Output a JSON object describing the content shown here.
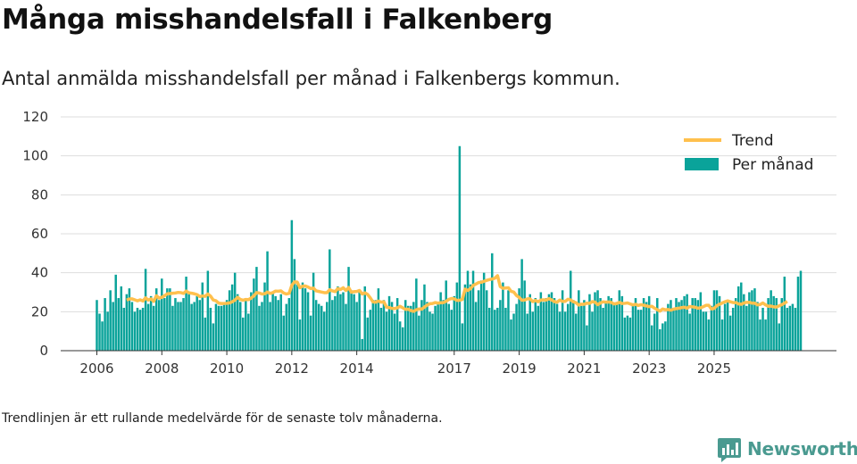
{
  "header": {
    "title": "Många misshandelsfall i Falkenberg",
    "subtitle": "Antal anmälda misshandelsfall per månad i Falkenbergs kommun."
  },
  "footnote": "Trendlinjen är ett rullande medelvärde för de senaste tolv månaderna.",
  "brand": {
    "name": "Newsworthy",
    "color": "#4a9a90",
    "icon": "bar-chart-logo-icon"
  },
  "colors": {
    "bars": "#0aa39a",
    "trend": "#ffc04d",
    "grid": "#dddddd",
    "text": "#222222"
  },
  "chart_data": {
    "type": "bar",
    "title": "Många misshandelsfall i Falkenberg",
    "subtitle": "Antal anmälda misshandelsfall per månad i Falkenbergs kommun.",
    "start": "2006-01",
    "ylim": [
      0,
      120
    ],
    "yticks": [
      0,
      20,
      40,
      60,
      80,
      100,
      120
    ],
    "xticks": [
      "2006",
      "2008",
      "2010",
      "2012",
      "2014",
      "2017",
      "2019",
      "2021",
      "2023",
      "2025"
    ],
    "grid": true,
    "legend_position": "top-right",
    "series": [
      {
        "name": "Per månad",
        "kind": "bar",
        "values": [
          26,
          19,
          15,
          27,
          20,
          31,
          25,
          39,
          27,
          33,
          22,
          29,
          32,
          25,
          20,
          22,
          21,
          22,
          42,
          24,
          28,
          23,
          32,
          26,
          37,
          27,
          32,
          32,
          23,
          27,
          25,
          25,
          27,
          38,
          29,
          24,
          25,
          28,
          26,
          35,
          17,
          41,
          22,
          14,
          24,
          23,
          23,
          24,
          26,
          31,
          34,
          40,
          29,
          25,
          17,
          27,
          19,
          30,
          37,
          43,
          23,
          25,
          35,
          51,
          25,
          30,
          28,
          26,
          29,
          18,
          24,
          27,
          67,
          47,
          34,
          16,
          35,
          32,
          30,
          18,
          40,
          26,
          24,
          23,
          20,
          25,
          52,
          26,
          28,
          33,
          29,
          30,
          24,
          43,
          31,
          29,
          25,
          31,
          6,
          33,
          17,
          21,
          26,
          26,
          32,
          22,
          26,
          20,
          28,
          25,
          19,
          27,
          15,
          12,
          26,
          23,
          23,
          25,
          37,
          18,
          26,
          34,
          25,
          20,
          19,
          23,
          24,
          30,
          26,
          36,
          24,
          21,
          28,
          35,
          105,
          14,
          34,
          41,
          34,
          41,
          25,
          31,
          36,
          40,
          31,
          22,
          50,
          21,
          22,
          26,
          35,
          22,
          31,
          16,
          19,
          24,
          32,
          47,
          36,
          19,
          29,
          20,
          27,
          23,
          30,
          25,
          27,
          29,
          30,
          27,
          24,
          20,
          31,
          20,
          24,
          41,
          26,
          19,
          31,
          23,
          26,
          13,
          29,
          20,
          30,
          31,
          27,
          22,
          25,
          28,
          27,
          24,
          25,
          31,
          28,
          17,
          18,
          17,
          23,
          27,
          21,
          21,
          27,
          25,
          28,
          13,
          19,
          27,
          11,
          14,
          15,
          24,
          26,
          22,
          27,
          25,
          26,
          28,
          29,
          19,
          27,
          27,
          26,
          30,
          20,
          20,
          16,
          23,
          31,
          31,
          28,
          16,
          24,
          26,
          18,
          22,
          27,
          33,
          35,
          29,
          23,
          30,
          31,
          32,
          25,
          16,
          22,
          16,
          27,
          31,
          28,
          27,
          14,
          27,
          38,
          22,
          23,
          24,
          22,
          38,
          41
        ]
      },
      {
        "name": "Trend",
        "kind": "line",
        "values": [
          null,
          null,
          null,
          null,
          null,
          null,
          null,
          null,
          null,
          null,
          null,
          26,
          26.5,
          26.6,
          26.1,
          25.6,
          26.1,
          25.5,
          27.1,
          26.0,
          26.6,
          25.3,
          28.2,
          27.0,
          27.4,
          28.2,
          29.2,
          29.3,
          29.5,
          29.6,
          29.9,
          29.8,
          29.4,
          30.6,
          29.7,
          29.5,
          29.2,
          28.8,
          27.8,
          28.1,
          27.9,
          29.1,
          28.0,
          26.0,
          25.6,
          24.4,
          24.2,
          24.2,
          24.3,
          24.5,
          25.1,
          26.0,
          27.4,
          26.3,
          25.9,
          26.3,
          26.2,
          27.0,
          28.2,
          29.8,
          29.6,
          29.1,
          29.2,
          30.1,
          29.4,
          29.8,
          30.6,
          30.5,
          30.7,
          29.6,
          29.1,
          29.4,
          33.5,
          35.3,
          35.2,
          32.3,
          33.1,
          33.2,
          32.7,
          31.9,
          32.1,
          30.7,
          30.4,
          30.1,
          29.8,
          29.8,
          31.3,
          30.7,
          30.3,
          31.9,
          31.4,
          32.3,
          30.9,
          32.4,
          30.0,
          30.3,
          30.4,
          30.9,
          29.1,
          29.7,
          28.9,
          27.1,
          25.0,
          24.9,
          25.5,
          24.9,
          25.1,
          22.3,
          22.1,
          21.7,
          21.6,
          22.0,
          22.8,
          22.0,
          21.2,
          21.3,
          20.6,
          20.2,
          21.0,
          21.4,
          21.3,
          22.4,
          23.4,
          24.1,
          24.2,
          24.7,
          24.4,
          24.6,
          24.7,
          25.3,
          26.3,
          26.8,
          26.6,
          25.8,
          25.9,
          26.3,
          31.6,
          30.9,
          31.8,
          33.5,
          34.2,
          35.0,
          35.1,
          35.6,
          36.1,
          36.5,
          36.8,
          37.2,
          38.5,
          32.9,
          32.0,
          32.2,
          32.3,
          30.5,
          30.1,
          28.3,
          27.3,
          25.9,
          26.0,
          26.6,
          26.6,
          25.2,
          25.8,
          25.1,
          26.0,
          26.1,
          26.0,
          26.7,
          26.0,
          25.2,
          24.9,
          26.0,
          25.3,
          25.3,
          26.4,
          26.0,
          25.1,
          24.6,
          23.4,
          23.9,
          23.8,
          24.4,
          24.3,
          25.2,
          24.9,
          23.6,
          24.5,
          25.1,
          24.9,
          25.0,
          24.8,
          24.0,
          24.2,
          24.8,
          24.2,
          24.3,
          24.5,
          24.0,
          23.5,
          23.8,
          23.2,
          23.6,
          23.3,
          23.0,
          22.6,
          22.8,
          21.8,
          21.0,
          20.3,
          21.4,
          21.0,
          21.1,
          20.8,
          21.3,
          21.6,
          21.8,
          22.1,
          22.3,
          21.8,
          22.7,
          22.5,
          22.3,
          21.8,
          22.0,
          22.6,
          23.3,
          23.3,
          21.4,
          21.7,
          23.1,
          23.8,
          24.5,
          25.1,
          25.6,
          25.1,
          24.7,
          24.7,
          24.0,
          23.8,
          24.5,
          24.8,
          24.8,
          24.4,
          24.4,
          23.5,
          23.7,
          24.5,
          23.5,
          22.8,
          22.9,
          22.5,
          22.4,
          23.0,
          23.6,
          24.4,
          25.3
        ]
      }
    ]
  }
}
